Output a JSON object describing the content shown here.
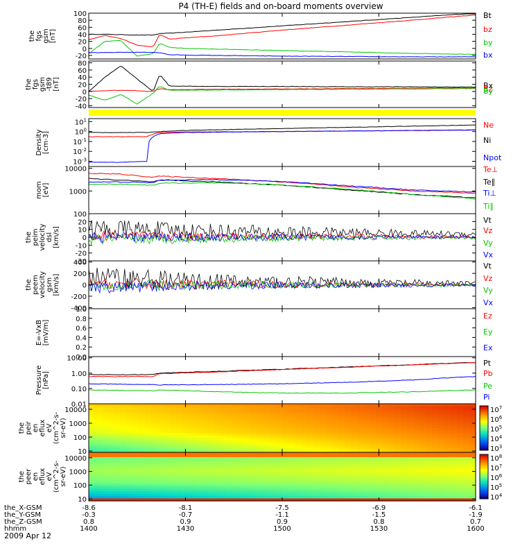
{
  "title": "P4 (TH-E) fields and on-board moments overview",
  "date": "2009 Apr 12",
  "x_time_ticks": [
    "1400",
    "1430",
    "1500",
    "1530",
    "1600"
  ],
  "ephemeris": [
    {
      "label": "the_X-GSM",
      "values": [
        "-8.6",
        "-8.1",
        "-7.5",
        "-6.9",
        "-6.1"
      ]
    },
    {
      "label": "the_Y-GSM",
      "values": [
        "-0.3",
        "-0.7",
        "-1.1",
        "-1.5",
        "-1.9"
      ]
    },
    {
      "label": "the_Z-GSM",
      "values": [
        "0.8",
        "0.9",
        "0.9",
        "0.8",
        "0.7"
      ]
    },
    {
      "label": "hhmm",
      "values": [
        "1400",
        "1430",
        "1500",
        "1530",
        "1600"
      ]
    }
  ],
  "colors": {
    "black": "#000000",
    "red": "#ff0000",
    "green": "#00c800",
    "blue": "#0000ff",
    "yellow": "#ffff00"
  },
  "chart_data": [
    {
      "type": "line",
      "ylabel": [
        "the",
        "fgs",
        "gsm",
        "[nT]"
      ],
      "ylim": [
        -30,
        100
      ],
      "yticks": [
        "100",
        "80",
        "60",
        "40",
        "20",
        "0",
        "-20"
      ],
      "x": [
        0,
        5,
        10,
        15,
        20,
        22,
        25,
        30,
        40,
        50,
        60,
        80,
        100,
        120
      ],
      "series": [
        {
          "name": "Bt",
          "color": "#000000",
          "values": [
            40,
            40,
            39,
            38,
            38,
            42,
            43,
            46,
            52,
            58,
            64,
            76,
            88,
            100
          ]
        },
        {
          "name": "bz",
          "color": "#ff0000",
          "values": [
            25,
            37,
            28,
            9,
            4,
            40,
            26,
            30,
            36,
            44,
            52,
            66,
            80,
            95
          ]
        },
        {
          "name": "by",
          "color": "#00c800",
          "values": [
            -15,
            20,
            22,
            -22,
            -15,
            15,
            3,
            0,
            -2,
            -4,
            -6,
            -10,
            -14,
            -17
          ]
        },
        {
          "name": "bx",
          "color": "#0000ff",
          "values": [
            -12,
            -12,
            -11,
            -11,
            -11,
            -12,
            -18,
            -19,
            -20,
            -21,
            -22,
            -23,
            -24,
            -24
          ]
        }
      ]
    },
    {
      "type": "line",
      "ylabel": [
        "the",
        "fgs",
        "gsm",
        "-t89",
        "[nT]"
      ],
      "ylim": [
        -45,
        85
      ],
      "yticks": [
        "80",
        "60",
        "40",
        "20",
        "0",
        "-20",
        "-40"
      ],
      "x": [
        0,
        5,
        10,
        15,
        20,
        22,
        25,
        40,
        60,
        80,
        100,
        120
      ],
      "series": [
        {
          "name": "Bx",
          "color": "#000000",
          "values": [
            0,
            40,
            72,
            35,
            0,
            48,
            15,
            14,
            14,
            13,
            13,
            12
          ]
        },
        {
          "name": "Bz",
          "color": "#ff0000",
          "values": [
            0,
            2,
            3,
            2,
            0,
            8,
            5,
            6,
            7,
            8,
            9,
            10
          ]
        },
        {
          "name": "By",
          "color": "#00c800",
          "values": [
            -10,
            -25,
            -8,
            -35,
            -5,
            15,
            3,
            4,
            5,
            6,
            7,
            8
          ]
        }
      ]
    },
    {
      "type": "line",
      "ylabel": [
        "Density",
        "[cm-3]"
      ],
      "yscale": "log",
      "ylim": [
        0.0003,
        20
      ],
      "yticks": [
        "10^1",
        "10^0",
        "10^-1",
        "10^-2",
        "10^-3"
      ],
      "x": [
        0,
        10,
        18,
        22,
        30,
        60,
        90,
        120
      ],
      "series": [
        {
          "name": "Ne",
          "color": "#ff0000",
          "values": [
            0.3,
            0.3,
            0.3,
            0.8,
            0.9,
            1.0,
            1.2,
            1.5
          ]
        },
        {
          "name": "Ni",
          "color": "#000000",
          "values": [
            0.8,
            0.8,
            0.8,
            1.0,
            1.3,
            2.0,
            3.0,
            4.5
          ]
        },
        {
          "name": "Npot",
          "color": "#0000ff",
          "values": [
            0.0008,
            0.0008,
            0.001,
            0.6,
            0.8,
            1.0,
            1.2,
            1.4
          ]
        }
      ]
    },
    {
      "type": "line",
      "ylabel": [
        "mom",
        "[eV]"
      ],
      "yscale": "log",
      "ylim": [
        100,
        12000
      ],
      "yticks": [
        "10000",
        "1000",
        "100"
      ],
      "x": [
        0,
        10,
        20,
        22,
        40,
        60,
        80,
        100,
        120
      ],
      "series": [
        {
          "name": "Te⊥",
          "color": "#ff0000",
          "values": [
            6000,
            5500,
            4000,
            4500,
            3500,
            2500,
            1500,
            1000,
            800
          ]
        },
        {
          "name": "Te∥",
          "color": "#000000",
          "values": [
            3500,
            3000,
            2500,
            3000,
            2500,
            1800,
            1100,
            700,
            500
          ]
        },
        {
          "name": "Ti⊥",
          "color": "#0000ff",
          "values": [
            2500,
            2500,
            2300,
            3000,
            3200,
            2600,
            1700,
            1100,
            900
          ]
        },
        {
          "name": "Ti∥",
          "color": "#00c800",
          "values": [
            2000,
            2000,
            1800,
            2200,
            2300,
            1800,
            1200,
            700,
            450
          ]
        }
      ]
    },
    {
      "type": "line",
      "ylabel": [
        "the",
        "peim",
        "velocity",
        "dsl",
        "[km/s]"
      ],
      "ylim": [
        -30,
        30
      ],
      "yticks": [
        "20",
        "10",
        "0",
        "-10",
        "-20",
        "-30"
      ],
      "series": [
        {
          "name": "Vt",
          "color": "#000000",
          "values": [
            10,
            8,
            6,
            5,
            4
          ]
        },
        {
          "name": "Vz",
          "color": "#ff0000",
          "values": [
            2,
            1,
            1,
            1,
            0
          ]
        },
        {
          "name": "Vy",
          "color": "#00c800",
          "values": [
            -3,
            -2,
            -1,
            -1,
            -1
          ]
        },
        {
          "name": "Vx",
          "color": "#0000ff",
          "values": [
            0,
            0,
            0,
            0,
            0
          ]
        }
      ]
    },
    {
      "type": "line",
      "ylabel": [
        "the",
        "peem",
        "velocity",
        "gsm",
        "[km/s]"
      ],
      "ylim": [
        -420,
        420
      ],
      "yticks": [
        "400",
        "200",
        "0",
        "-200",
        "-400"
      ],
      "series": [
        {
          "name": "Vt",
          "color": "#000000",
          "values": [
            150,
            60,
            40,
            30,
            20
          ]
        },
        {
          "name": "Vz",
          "color": "#ff0000",
          "values": [
            20,
            10,
            5,
            5,
            5
          ]
        },
        {
          "name": "Vy",
          "color": "#00c800",
          "values": [
            -20,
            -10,
            -5,
            -5,
            -5
          ]
        },
        {
          "name": "Vx",
          "color": "#0000ff",
          "values": [
            -60,
            -20,
            -10,
            -10,
            -10
          ]
        }
      ]
    },
    {
      "type": "line",
      "ylabel": [
        "E=-VxB",
        "[mV/m]"
      ],
      "ylim": [
        0,
        1
      ],
      "yticks": [
        "1.0",
        "0.8",
        "0.6",
        "0.4",
        "0.2",
        "0.0"
      ],
      "series": [
        {
          "name": "Ez",
          "color": "#ff0000",
          "values": []
        },
        {
          "name": "Ey",
          "color": "#00c800",
          "values": []
        },
        {
          "name": "Ex",
          "color": "#0000ff",
          "values": []
        }
      ]
    },
    {
      "type": "line",
      "ylabel": [
        "Pressure",
        "[nPa]"
      ],
      "yscale": "log",
      "ylim": [
        0.01,
        12
      ],
      "yticks": [
        "10.00",
        "1.00",
        "0.10",
        "0.01"
      ],
      "x": [
        0,
        20,
        22,
        40,
        60,
        80,
        100,
        120
      ],
      "series": [
        {
          "name": "Pt",
          "color": "#000000",
          "values": [
            0.8,
            0.8,
            1.0,
            1.3,
            1.8,
            2.5,
            3.5,
            5.0
          ]
        },
        {
          "name": "Pb",
          "color": "#ff0000",
          "values": [
            0.6,
            0.6,
            0.9,
            1.2,
            1.7,
            2.4,
            3.4,
            4.8
          ]
        },
        {
          "name": "Pe",
          "color": "#00c800",
          "values": [
            0.08,
            0.07,
            0.08,
            0.06,
            0.05,
            0.05,
            0.06,
            0.08
          ]
        },
        {
          "name": "Pi",
          "color": "#0000ff",
          "values": [
            0.2,
            0.18,
            0.17,
            0.18,
            0.2,
            0.25,
            0.35,
            0.6
          ]
        }
      ]
    },
    {
      "type": "heatmap",
      "ylabel": [
        "the",
        "peir",
        "en",
        "eflux",
        "eV",
        "(cm^2-s-",
        "sr-eV)"
      ],
      "yscale": "log",
      "ylim": [
        8,
        25000
      ],
      "yticks": [
        "10000",
        "1000",
        "100",
        "10"
      ],
      "colorbar": [
        "10^7",
        "10^6",
        "10^5",
        "10^4",
        "10^3"
      ]
    },
    {
      "type": "heatmap",
      "ylabel": [
        "the",
        "peer",
        "en",
        "eflux",
        "eV",
        "(cm^2-s-",
        "sr-eV)"
      ],
      "yscale": "log",
      "ylim": [
        7,
        25000
      ],
      "yticks": [
        "10000",
        "1000",
        "100",
        "10"
      ],
      "colorbar": [
        "10^8",
        "10^7",
        "10^6",
        "10^5",
        "10^4"
      ]
    }
  ]
}
